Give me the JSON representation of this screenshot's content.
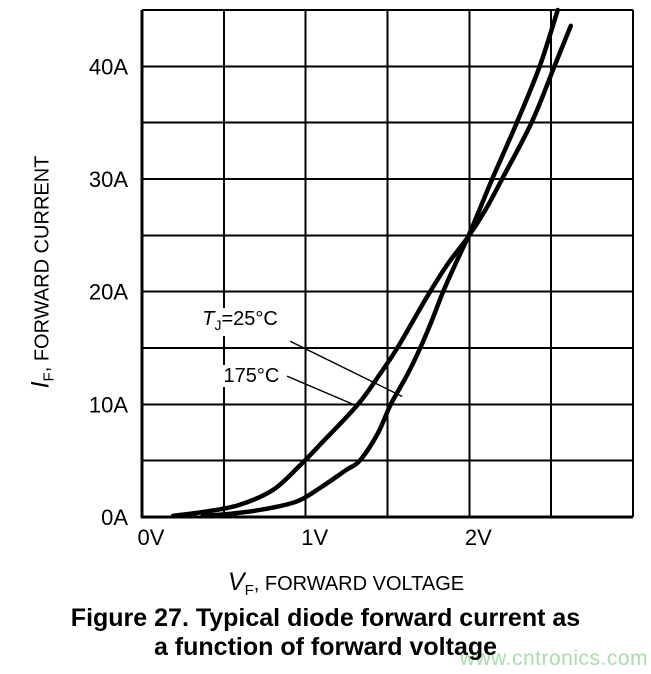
{
  "figure": {
    "caption_line1": "Figure 27. Typical diode forward current as",
    "caption_line2": "a function of forward voltage",
    "watermark": {
      "text": "www.cntronics.com",
      "color": "#aadcaa"
    }
  },
  "chart_data": {
    "type": "line",
    "grid": "on",
    "line_color": "#000000",
    "x_axis": {
      "label_italic": "V",
      "label_sub": "F",
      "label_rest": ", FORWARD VOLTAGE",
      "min": 0,
      "max": 3,
      "grid_step": 0.5,
      "ticks": [
        {
          "value": 0,
          "label": "0V"
        },
        {
          "value": 1,
          "label": "1V"
        },
        {
          "value": 2,
          "label": "2V"
        }
      ]
    },
    "y_axis": {
      "label_italic": "I",
      "label_sub": "F",
      "label_rest": ", FORWARD CURRENT",
      "min": 0,
      "max": 45,
      "grid_step": 5,
      "ticks": [
        {
          "value": 0,
          "label": "0A"
        },
        {
          "value": 10,
          "label": "10A"
        },
        {
          "value": 20,
          "label": "20A"
        },
        {
          "value": 30,
          "label": "30A"
        },
        {
          "value": 40,
          "label": "40A"
        }
      ]
    },
    "series": [
      {
        "name": "TJ_25C",
        "label_italic": "T",
        "label_sub": "J",
        "label_rest": "=25°C",
        "label_anchor_v_a": [
          0.35,
          17.3
        ],
        "leader": {
          "from_v_a": [
            0.905,
            15.6
          ],
          "to_v_a": [
            1.59,
            10.7
          ]
        },
        "points_v_a": [
          [
            0.37,
            0.1
          ],
          [
            0.55,
            0.3
          ],
          [
            0.75,
            0.7
          ],
          [
            0.95,
            1.4
          ],
          [
            1.1,
            2.7
          ],
          [
            1.25,
            4.2
          ],
          [
            1.33,
            5.0
          ],
          [
            1.44,
            7.4
          ],
          [
            1.52,
            10.0
          ],
          [
            1.62,
            12.6
          ],
          [
            1.7,
            15.0
          ],
          [
            1.77,
            17.4
          ],
          [
            1.84,
            20.0
          ],
          [
            1.91,
            22.3
          ],
          [
            1.99,
            24.8
          ],
          [
            2.06,
            27.2
          ],
          [
            2.14,
            30.0
          ],
          [
            2.29,
            35.0
          ],
          [
            2.43,
            40.0
          ],
          [
            2.54,
            45.0
          ]
        ]
      },
      {
        "name": "175C",
        "label_rest": "175°C",
        "label_anchor_v_a": [
          0.48,
          12.5
        ],
        "leader": {
          "from_v_a": [
            0.886,
            12.5
          ],
          "to_v_a": [
            1.314,
            9.85
          ]
        },
        "points_v_a": [
          [
            0.19,
            0.1
          ],
          [
            0.4,
            0.5
          ],
          [
            0.6,
            1.1
          ],
          [
            0.8,
            2.4
          ],
          [
            0.96,
            4.5
          ],
          [
            1.1,
            6.6
          ],
          [
            1.32,
            10.0
          ],
          [
            1.45,
            12.6
          ],
          [
            1.56,
            15.0
          ],
          [
            1.66,
            17.5
          ],
          [
            1.76,
            20.0
          ],
          [
            1.87,
            22.5
          ],
          [
            1.99,
            24.8
          ],
          [
            2.1,
            27.3
          ],
          [
            2.2,
            30.0
          ],
          [
            2.38,
            35.0
          ],
          [
            2.52,
            40.0
          ],
          [
            2.62,
            43.6
          ]
        ]
      }
    ]
  }
}
